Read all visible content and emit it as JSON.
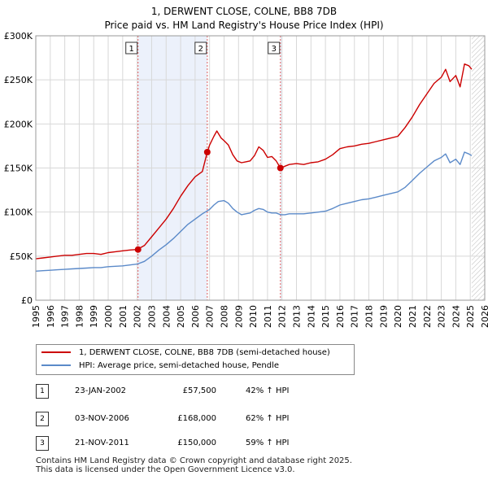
{
  "chart_data": {
    "type": "line",
    "title": "1, DERWENT CLOSE, COLNE, BB8 7DB",
    "subtitle": "Price paid vs. HM Land Registry's House Price Index (HPI)",
    "xlabel": "",
    "ylabel": "",
    "xlim": [
      1995,
      2026
    ],
    "ylim": [
      0,
      300000
    ],
    "x_ticks": [
      "1995",
      "1996",
      "1997",
      "1998",
      "1999",
      "2000",
      "2001",
      "2002",
      "2003",
      "2004",
      "2005",
      "2006",
      "2007",
      "2008",
      "2009",
      "2010",
      "2011",
      "2012",
      "2013",
      "2014",
      "2015",
      "2016",
      "2017",
      "2018",
      "2019",
      "2020",
      "2021",
      "2022",
      "2023",
      "2024",
      "2025",
      "2026"
    ],
    "y_ticks": [
      {
        "value": 0,
        "label": "£0"
      },
      {
        "value": 50000,
        "label": "£50K"
      },
      {
        "value": 100000,
        "label": "£100K"
      },
      {
        "value": 150000,
        "label": "£150K"
      },
      {
        "value": 200000,
        "label": "£200K"
      },
      {
        "value": 250000,
        "label": "£250K"
      },
      {
        "value": 300000,
        "label": "£300K"
      }
    ],
    "grid": true,
    "shaded_ranges": [
      [
        2002.06,
        2006.84
      ],
      [
        2011.89,
        2012.0
      ]
    ],
    "future_hatch_start": 2025.1,
    "series": [
      {
        "name": "1, DERWENT CLOSE, COLNE, BB8 7DB (semi-detached house)",
        "color": "#cc0000",
        "x": [
          1995.0,
          1995.5,
          1996.0,
          1996.5,
          1997.0,
          1997.5,
          1998.0,
          1998.5,
          1999.0,
          1999.5,
          2000.0,
          2000.5,
          2001.0,
          2001.5,
          2002.0,
          2002.5,
          2003.0,
          2003.5,
          2004.0,
          2004.5,
          2005.0,
          2005.5,
          2006.0,
          2006.5,
          2006.84,
          2007.0,
          2007.3,
          2007.5,
          2007.8,
          2008.0,
          2008.3,
          2008.6,
          2008.9,
          2009.2,
          2009.5,
          2009.8,
          2010.1,
          2010.4,
          2010.7,
          2011.0,
          2011.3,
          2011.6,
          2011.89,
          2012.2,
          2012.5,
          2013.0,
          2013.5,
          2014.0,
          2014.5,
          2015.0,
          2015.5,
          2016.0,
          2016.5,
          2017.0,
          2017.5,
          2018.0,
          2018.5,
          2019.0,
          2019.5,
          2020.0,
          2020.5,
          2021.0,
          2021.5,
          2022.0,
          2022.5,
          2023.0,
          2023.3,
          2023.6,
          2024.0,
          2024.3,
          2024.6,
          2024.9,
          2025.1
        ],
        "values": [
          47000,
          48000,
          49000,
          50000,
          51000,
          51000,
          52000,
          53000,
          53000,
          52000,
          54000,
          55000,
          56000,
          57000,
          57500,
          62000,
          72000,
          82000,
          92000,
          104000,
          118000,
          130000,
          140000,
          146000,
          168000,
          176000,
          186000,
          192000,
          184000,
          181000,
          176000,
          165000,
          158000,
          156000,
          157000,
          158000,
          164000,
          174000,
          170000,
          162000,
          163000,
          158000,
          150000,
          152000,
          154000,
          155000,
          154000,
          156000,
          157000,
          160000,
          165000,
          172000,
          174000,
          175000,
          177000,
          178000,
          180000,
          182000,
          184000,
          186000,
          196000,
          208000,
          222000,
          234000,
          246000,
          253000,
          262000,
          248000,
          255000,
          242000,
          268000,
          266000,
          262000
        ]
      },
      {
        "name": "HPI: Average price, semi-detached house, Pendle",
        "color": "#5b8ac9",
        "x": [
          1995.0,
          1995.5,
          1996.0,
          1996.5,
          1997.0,
          1997.5,
          1998.0,
          1998.5,
          1999.0,
          1999.5,
          2000.0,
          2000.5,
          2001.0,
          2001.5,
          2002.0,
          2002.5,
          2003.0,
          2003.5,
          2004.0,
          2004.5,
          2005.0,
          2005.5,
          2006.0,
          2006.5,
          2007.0,
          2007.3,
          2007.6,
          2008.0,
          2008.3,
          2008.6,
          2008.9,
          2009.2,
          2009.5,
          2009.8,
          2010.1,
          2010.4,
          2010.7,
          2011.0,
          2011.3,
          2011.6,
          2011.9,
          2012.2,
          2012.5,
          2013.0,
          2013.5,
          2014.0,
          2014.5,
          2015.0,
          2015.5,
          2016.0,
          2016.5,
          2017.0,
          2017.5,
          2018.0,
          2018.5,
          2019.0,
          2019.5,
          2020.0,
          2020.5,
          2021.0,
          2021.5,
          2022.0,
          2022.5,
          2023.0,
          2023.3,
          2023.6,
          2024.0,
          2024.3,
          2024.6,
          2024.9,
          2025.1
        ],
        "values": [
          33000,
          33500,
          34000,
          34500,
          35000,
          35500,
          36000,
          36500,
          37000,
          37000,
          38000,
          38500,
          39000,
          40000,
          41000,
          44000,
          50000,
          57000,
          63000,
          70000,
          78000,
          86000,
          92000,
          98000,
          103000,
          108000,
          112000,
          113000,
          110000,
          104000,
          100000,
          97000,
          98000,
          99000,
          102000,
          104000,
          103000,
          100000,
          99000,
          99000,
          97000,
          97000,
          98000,
          98000,
          98000,
          99000,
          100000,
          101000,
          104000,
          108000,
          110000,
          112000,
          114000,
          115000,
          117000,
          119000,
          121000,
          123000,
          128000,
          136000,
          144000,
          151000,
          158000,
          162000,
          166000,
          156000,
          160000,
          154000,
          168000,
          166000,
          164000
        ]
      }
    ],
    "markers": [
      {
        "label": "1",
        "x": 2002.06,
        "y": 57500
      },
      {
        "label": "2",
        "x": 2006.84,
        "y": 168000
      },
      {
        "label": "3",
        "x": 2011.89,
        "y": 150000
      }
    ]
  },
  "legend": {
    "property": "1, DERWENT CLOSE, COLNE, BB8 7DB (semi-detached house)",
    "hpi": "HPI: Average price, semi-detached house, Pendle"
  },
  "sales": [
    {
      "num": "1",
      "date": "23-JAN-2002",
      "price": "£57,500",
      "hpi": "42% ↑ HPI"
    },
    {
      "num": "2",
      "date": "03-NOV-2006",
      "price": "£168,000",
      "hpi": "62% ↑ HPI"
    },
    {
      "num": "3",
      "date": "21-NOV-2011",
      "price": "£150,000",
      "hpi": "59% ↑ HPI"
    }
  ],
  "footer": {
    "line1": "Contains HM Land Registry data © Crown copyright and database right 2025.",
    "line2": "This data is licensed under the Open Government Licence v3.0."
  }
}
